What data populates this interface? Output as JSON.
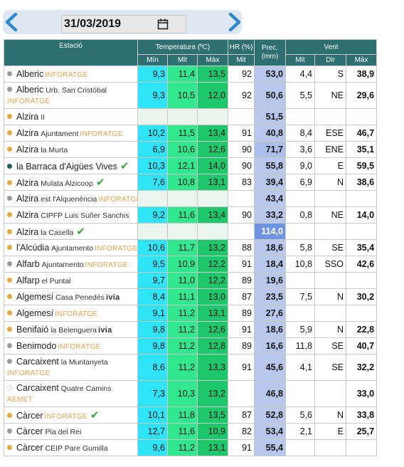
{
  "header": {
    "date": "31/03/2019",
    "prev_icon": "chevron-left-icon",
    "next_icon": "chevron-right-icon",
    "calendar_icon": "calendar-icon"
  },
  "columns": {
    "station": "Estació",
    "temp": "Temperatura (ºC)",
    "hr": "HR (%)",
    "prec": "Prec. (mm)",
    "wind": "Vent",
    "min": "Mín",
    "mit": "Mit",
    "max": "Màx",
    "hr_mit": "Mit",
    "w_mit": "Mit",
    "w_dir": "Dir",
    "w_max": "Màx"
  },
  "colors": {
    "header_bg": "#2e6f71",
    "temp_min": "#2fe4f6",
    "temp_mit": "#32e88e",
    "temp_max": "#1ec76c",
    "prec": "#b7c8ec",
    "prec_high": "#6e94e2",
    "dot_orange": "#e8a93a",
    "dot_grey": "#9a9a9a",
    "dot_teal": "#1f5f5c",
    "brand_orange": "#e8a04c"
  },
  "rows": [
    {
      "name": "Alberic",
      "sub": "",
      "tag": "INFORATGE",
      "dot": "grey",
      "min": "9,3",
      "mit": "11,4",
      "max": "13,5",
      "hr": "92",
      "prec": "53,0",
      "wmit": "4,4",
      "wdir": "S",
      "wmax": "38,9"
    },
    {
      "name": "Alberic",
      "sub": "Urb. San Cristóbal",
      "tag": "INFORATGE",
      "tag2": true,
      "dot": "grey",
      "min": "9,3",
      "mit": "10,5",
      "max": "12,0",
      "hr": "92",
      "prec": "50,6",
      "wmit": "5,5",
      "wdir": "NE",
      "wmax": "29,6"
    },
    {
      "name": "Alzira",
      "sub": "II",
      "tag": "",
      "dot": "orange",
      "min": "",
      "mit": "",
      "max": "",
      "hr": "",
      "prec": "51,5",
      "wmit": "",
      "wdir": "",
      "wmax": ""
    },
    {
      "name": "Alzira",
      "sub": "Ajuntament",
      "tag": "INFORATGE",
      "dot": "orange",
      "min": "10,2",
      "mit": "11,5",
      "max": "13,4",
      "hr": "91",
      "prec": "40,8",
      "wmit": "8,4",
      "wdir": "ESE",
      "wmax": "46,7"
    },
    {
      "name": "Alzira",
      "sub": "la Murta",
      "tag": "",
      "dot": "orange",
      "min": "6,9",
      "mit": "10,6",
      "max": "12,6",
      "hr": "90",
      "prec": "71,7",
      "wmit": "3,6",
      "wdir": "ENE",
      "wmax": "35,1"
    },
    {
      "name": "la Barraca d'Aigües Vives",
      "sub": "",
      "tag": "",
      "dot": "teal",
      "check": true,
      "min": "10,3",
      "mit": "12,1",
      "max": "14,0",
      "hr": "90",
      "prec": "55,8",
      "wmit": "9,0",
      "wdir": "E",
      "wmax": "59,5"
    },
    {
      "name": "Alzira",
      "sub": "Mulata Alzicoop",
      "tag": "",
      "dot": "orange",
      "check": true,
      "min": "7,6",
      "mit": "10,8",
      "max": "13,1",
      "hr": "83",
      "prec": "39,4",
      "wmit": "6,9",
      "wdir": "N",
      "wmax": "38,6"
    },
    {
      "name": "Alzira",
      "sub": "est l'Alquenència",
      "tag": "INFORATGE",
      "dot": "grey",
      "min": "",
      "mit": "",
      "max": "",
      "hr": "",
      "prec": "43,4",
      "wmit": "",
      "wdir": "",
      "wmax": ""
    },
    {
      "name": "Alzira",
      "sub": "CIPFP Luis Suñer Sanchis",
      "tag": "",
      "dot": "orange",
      "min": "9,2",
      "mit": "11,6",
      "max": "13,4",
      "hr": "90",
      "prec": "33,2",
      "wmit": "0,8",
      "wdir": "NE",
      "wmax": "14,0"
    },
    {
      "name": "Alzira",
      "sub": "la Casella",
      "tag": "",
      "dot": "orange",
      "check": true,
      "min": "",
      "mit": "",
      "max": "",
      "hr": "",
      "prec": "114,0",
      "wmit": "",
      "wdir": "",
      "wmax": ""
    },
    {
      "name": "l'Alcúdia",
      "sub": "Ajuntamento",
      "tag": "INFORATGE",
      "dot": "orange",
      "min": "10,6",
      "mit": "11,7",
      "max": "13,2",
      "hr": "88",
      "prec": "18,6",
      "wmit": "5,8",
      "wdir": "SE",
      "wmax": "35,4"
    },
    {
      "name": "Alfarb",
      "sub": "Ajuntamento",
      "tag": "INFORATGE",
      "dot": "grey",
      "min": "9,5",
      "mit": "10,9",
      "max": "12,2",
      "hr": "91",
      "prec": "18,4",
      "wmit": "10,8",
      "wdir": "SSO",
      "wmax": "42,6"
    },
    {
      "name": "Alfarp",
      "sub": "el Puntal",
      "tag": "",
      "dot": "orange",
      "min": "9,7",
      "mit": "11,0",
      "max": "12,2",
      "hr": "89",
      "prec": "19,6",
      "wmit": "",
      "wdir": "",
      "wmax": ""
    },
    {
      "name": "Algemesí",
      "sub": "Casa Penedès",
      "tag": "ivia",
      "tagblk": true,
      "dot": "orange",
      "min": "8,4",
      "mit": "11,1",
      "max": "13,0",
      "hr": "87",
      "prec": "23,5",
      "wmit": "7,5",
      "wdir": "N",
      "wmax": "30,2"
    },
    {
      "name": "Algemesí",
      "sub": "",
      "tag": "INFORATGE",
      "dot": "orange",
      "min": "9,1",
      "mit": "11,2",
      "max": "13,1",
      "hr": "89",
      "prec": "27,6",
      "wmit": "",
      "wdir": "",
      "wmax": ""
    },
    {
      "name": "Benifaió",
      "sub": "la Belenguera",
      "tag": "ivia",
      "tagblk": true,
      "dot": "orange",
      "min": "9,8",
      "mit": "11,2",
      "max": "12,6",
      "hr": "91",
      "prec": "18,6",
      "wmit": "5,9",
      "wdir": "N",
      "wmax": "22,8"
    },
    {
      "name": "Benimodo",
      "sub": "",
      "tag": "INFORATGE",
      "dot": "grey",
      "min": "9,8",
      "mit": "11,2",
      "max": "12,8",
      "hr": "89",
      "prec": "16,6",
      "wmit": "11,8",
      "wdir": "SE",
      "wmax": "40,7"
    },
    {
      "name": "Carcaixent",
      "sub": "la Muntanyeta",
      "tag": "INFORATGE",
      "tag2": true,
      "dot": "grey",
      "min": "8,6",
      "mit": "11,2",
      "max": "13,3",
      "hr": "91",
      "prec": "45,6",
      "wmit": "4,1",
      "wdir": "SE",
      "wmax": "32,2"
    },
    {
      "name": "Carcaixent",
      "sub": "Quatre Camins",
      "tag": "AEMET",
      "tag2": true,
      "tagblk": true,
      "dot": "none",
      "min": "7,3",
      "mit": "10,3",
      "max": "13,2",
      "hr": "",
      "prec": "46,8",
      "wmit": "",
      "wdir": "",
      "wmax": "33,0"
    },
    {
      "name": "Càrcer",
      "sub": "",
      "tag": "INFORATGE",
      "dot": "orange",
      "check": true,
      "min": "10,1",
      "mit": "11,8",
      "max": "13,5",
      "hr": "87",
      "prec": "52,8",
      "wmit": "5,6",
      "wdir": "N",
      "wmax": "33,8"
    },
    {
      "name": "Càrcer",
      "sub": "Pla del Rei",
      "tag": "",
      "dot": "grey",
      "min": "12,7",
      "mit": "11,6",
      "max": "10,9",
      "hr": "82",
      "prec": "53,4",
      "wmit": "2,1",
      "wdir": "E",
      "wmax": "25,7"
    },
    {
      "name": "Càrcer",
      "sub": "CEIP Pare Gumilla",
      "tag": "",
      "dot": "orange",
      "min": "9,6",
      "mit": "11,2",
      "max": "13,1",
      "hr": "91",
      "prec": "55,4",
      "wmit": "",
      "wdir": "",
      "wmax": ""
    }
  ]
}
